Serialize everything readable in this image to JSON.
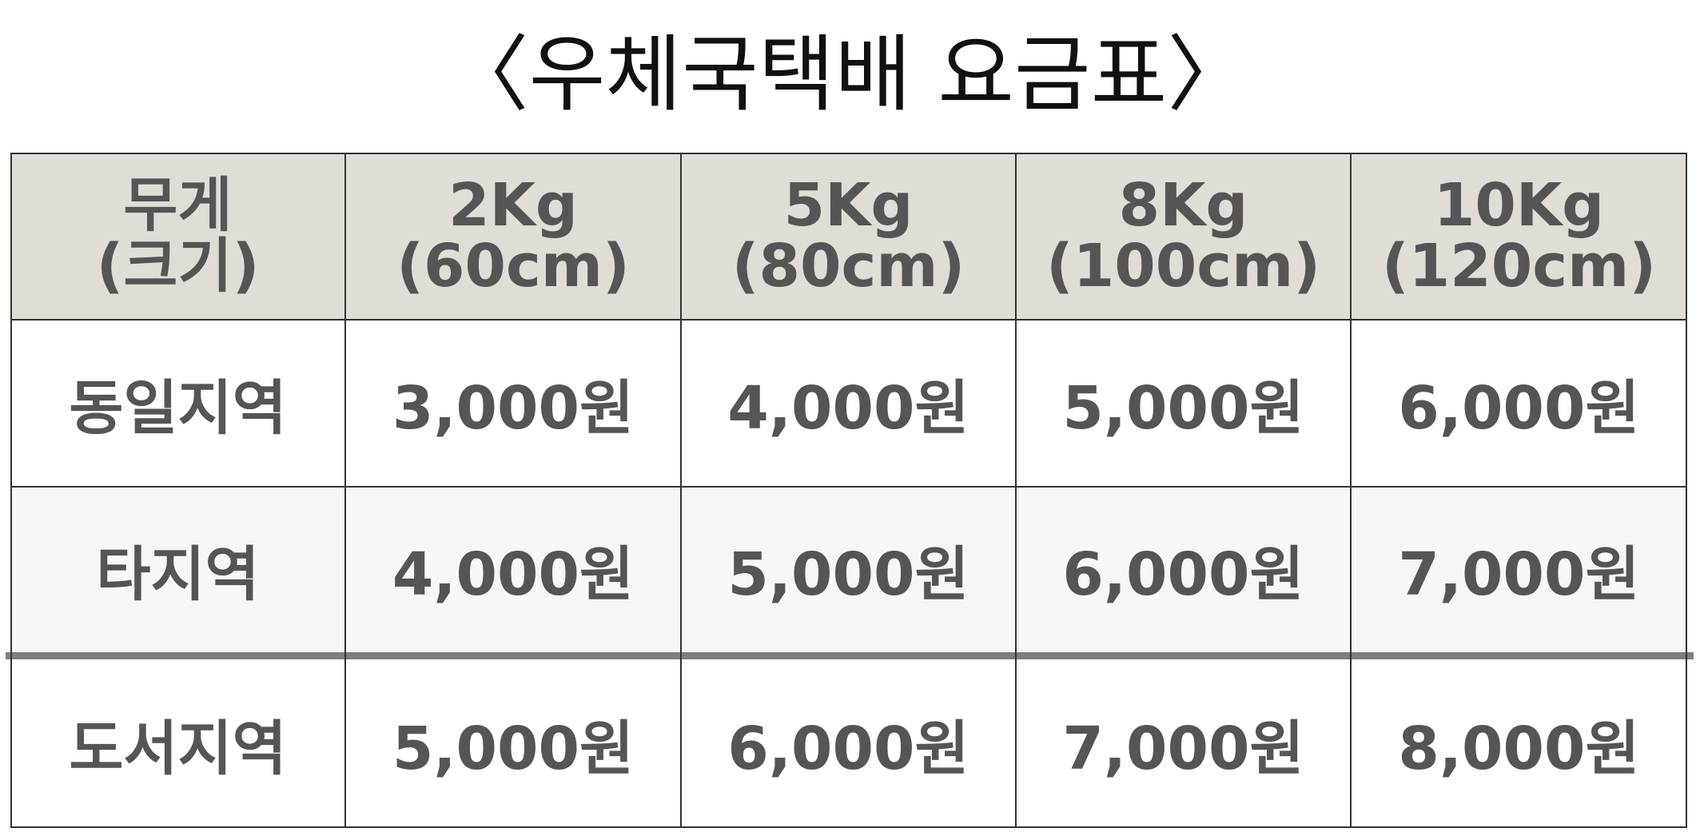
{
  "title": "〈우체국택배 요금표〉",
  "table": {
    "header": {
      "label_line1": "무게",
      "label_line2": "(크기)",
      "columns": [
        {
          "weight": "2Kg",
          "size": "(60cm)"
        },
        {
          "weight": "5Kg",
          "size": "(80cm)"
        },
        {
          "weight": "8Kg",
          "size": "(100cm)"
        },
        {
          "weight": "10Kg",
          "size": "(120cm)"
        }
      ]
    },
    "rows": [
      {
        "region": "동일지역",
        "prices": [
          "3,000원",
          "4,000원",
          "5,000원",
          "6,000원"
        ]
      },
      {
        "region": "타지역",
        "prices": [
          "4,000원",
          "5,000원",
          "6,000원",
          "7,000원"
        ]
      },
      {
        "region": "도서지역",
        "prices": [
          "5,000원",
          "6,000원",
          "7,000원",
          "8,000원"
        ]
      }
    ]
  },
  "colors": {
    "header_bg": "#e0ddd6",
    "row_alt_bg": "#f7f7f7",
    "text": "#555555",
    "title_text": "#111111",
    "divider": "#7f7f7f"
  }
}
